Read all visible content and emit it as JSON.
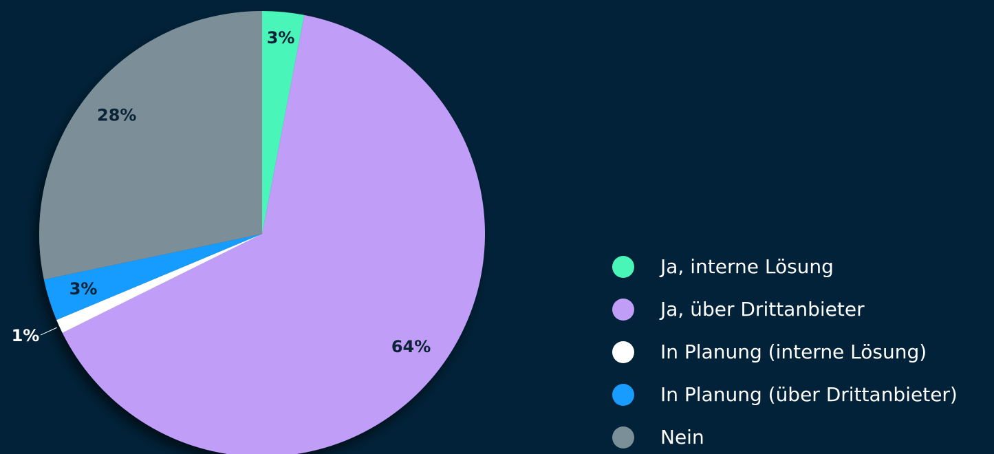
{
  "chart_data": {
    "type": "pie",
    "categories": [
      "Ja, interne Lösung",
      "Ja, über Drittanbieter",
      "In Planung (interne Lösung)",
      "In Planung (über Drittanbieter)",
      "Nein"
    ],
    "values": [
      3,
      64,
      1,
      3,
      28
    ],
    "value_labels": [
      "3%",
      "64%",
      "1%",
      "3%",
      "28%"
    ],
    "colors": [
      "#4af5b8",
      "#c09ef7",
      "#ffffff",
      "#189cff",
      "#7b8f99"
    ],
    "legend": "right"
  }
}
